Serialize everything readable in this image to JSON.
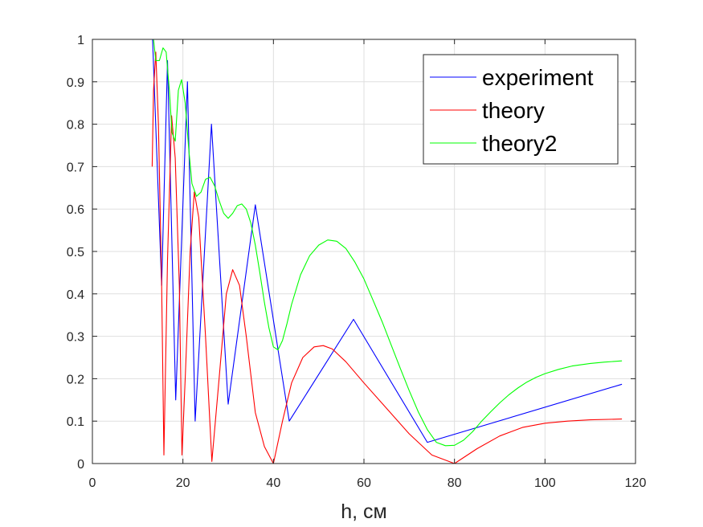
{
  "chart_data": {
    "type": "line",
    "title": "",
    "xlabel": "h, см",
    "ylabel": "",
    "xlim": [
      0,
      120
    ],
    "ylim": [
      0,
      1
    ],
    "xticks": [
      "0",
      "20",
      "40",
      "60",
      "80",
      "100",
      "120"
    ],
    "yticks": [
      "0",
      "0.1",
      "0.2",
      "0.3",
      "0.4",
      "0.5",
      "0.6",
      "0.7",
      "0.8",
      "0.9",
      "1"
    ],
    "grid": true,
    "legend_position": "top-right",
    "series": [
      {
        "name": "experiment",
        "color": "#0000ff",
        "x": [
          13.3,
          15.3,
          16.6,
          18.4,
          21.0,
          22.7,
          26.3,
          30.0,
          36.0,
          43.5,
          57.7,
          74.0,
          117.0
        ],
        "y": [
          1.0,
          0.42,
          0.95,
          0.15,
          0.9,
          0.1,
          0.8,
          0.14,
          0.61,
          0.1,
          0.34,
          0.05,
          0.187
        ]
      },
      {
        "name": "theory",
        "color": "#ff0000",
        "x": [
          13.2,
          13.5,
          14.0,
          14.6,
          15.3,
          15.8,
          16.6,
          17.5,
          18.3,
          19.2,
          19.8,
          20.5,
          21.6,
          22.5,
          23.5,
          25.0,
          26.4,
          28.0,
          29.6,
          31.0,
          32.5,
          34.0,
          36.0,
          38.0,
          40.0,
          42.0,
          44.0,
          46.5,
          49.0,
          51.0,
          53.0,
          56.0,
          60.0,
          65.0,
          70.0,
          75.0,
          80.0,
          85.0,
          90.0,
          95.0,
          100.0,
          105.0,
          110.0,
          117.0
        ],
        "y": [
          0.7,
          0.88,
          0.97,
          0.8,
          0.42,
          0.02,
          0.48,
          0.82,
          0.72,
          0.42,
          0.02,
          0.2,
          0.5,
          0.64,
          0.58,
          0.3,
          0.005,
          0.2,
          0.4,
          0.457,
          0.42,
          0.3,
          0.12,
          0.04,
          0.0,
          0.1,
          0.19,
          0.25,
          0.275,
          0.278,
          0.27,
          0.24,
          0.19,
          0.13,
          0.07,
          0.02,
          0.0,
          0.035,
          0.065,
          0.085,
          0.095,
          0.1,
          0.103,
          0.105
        ]
      },
      {
        "name": "theory2",
        "color": "#00ff00",
        "x": [
          13.5,
          14.0,
          14.8,
          15.6,
          16.3,
          17.0,
          17.6,
          18.3,
          19.0,
          19.7,
          20.5,
          21.3,
          22.0,
          23.0,
          24.0,
          25.0,
          26.0,
          27.0,
          28.0,
          29.0,
          30.0,
          31.0,
          32.0,
          33.0,
          34.0,
          35.0,
          36.0,
          37.0,
          38.0,
          39.0,
          40.0,
          41.0,
          42.0,
          43.0,
          44.0,
          46.0,
          48.0,
          50.0,
          52.0,
          54.0,
          56.0,
          58.0,
          60.0,
          62.0,
          64.0,
          66.0,
          68.0,
          70.0,
          72.0,
          74.0,
          76.0,
          78.0,
          80.0,
          82.0,
          84.0,
          86.0,
          88.0,
          90.0,
          92.0,
          94.0,
          96.0,
          98.0,
          100.0,
          103.0,
          106.0,
          110.0,
          113.0,
          117.0
        ],
        "y": [
          1.0,
          0.95,
          0.95,
          0.98,
          0.97,
          0.88,
          0.78,
          0.76,
          0.88,
          0.905,
          0.85,
          0.74,
          0.66,
          0.63,
          0.64,
          0.67,
          0.675,
          0.655,
          0.62,
          0.59,
          0.578,
          0.59,
          0.608,
          0.612,
          0.6,
          0.567,
          0.515,
          0.45,
          0.38,
          0.32,
          0.275,
          0.268,
          0.29,
          0.33,
          0.375,
          0.445,
          0.49,
          0.515,
          0.527,
          0.524,
          0.507,
          0.475,
          0.435,
          0.385,
          0.335,
          0.28,
          0.225,
          0.172,
          0.122,
          0.08,
          0.05,
          0.042,
          0.043,
          0.055,
          0.075,
          0.1,
          0.122,
          0.143,
          0.162,
          0.178,
          0.192,
          0.203,
          0.212,
          0.222,
          0.23,
          0.236,
          0.239,
          0.242
        ]
      }
    ]
  }
}
